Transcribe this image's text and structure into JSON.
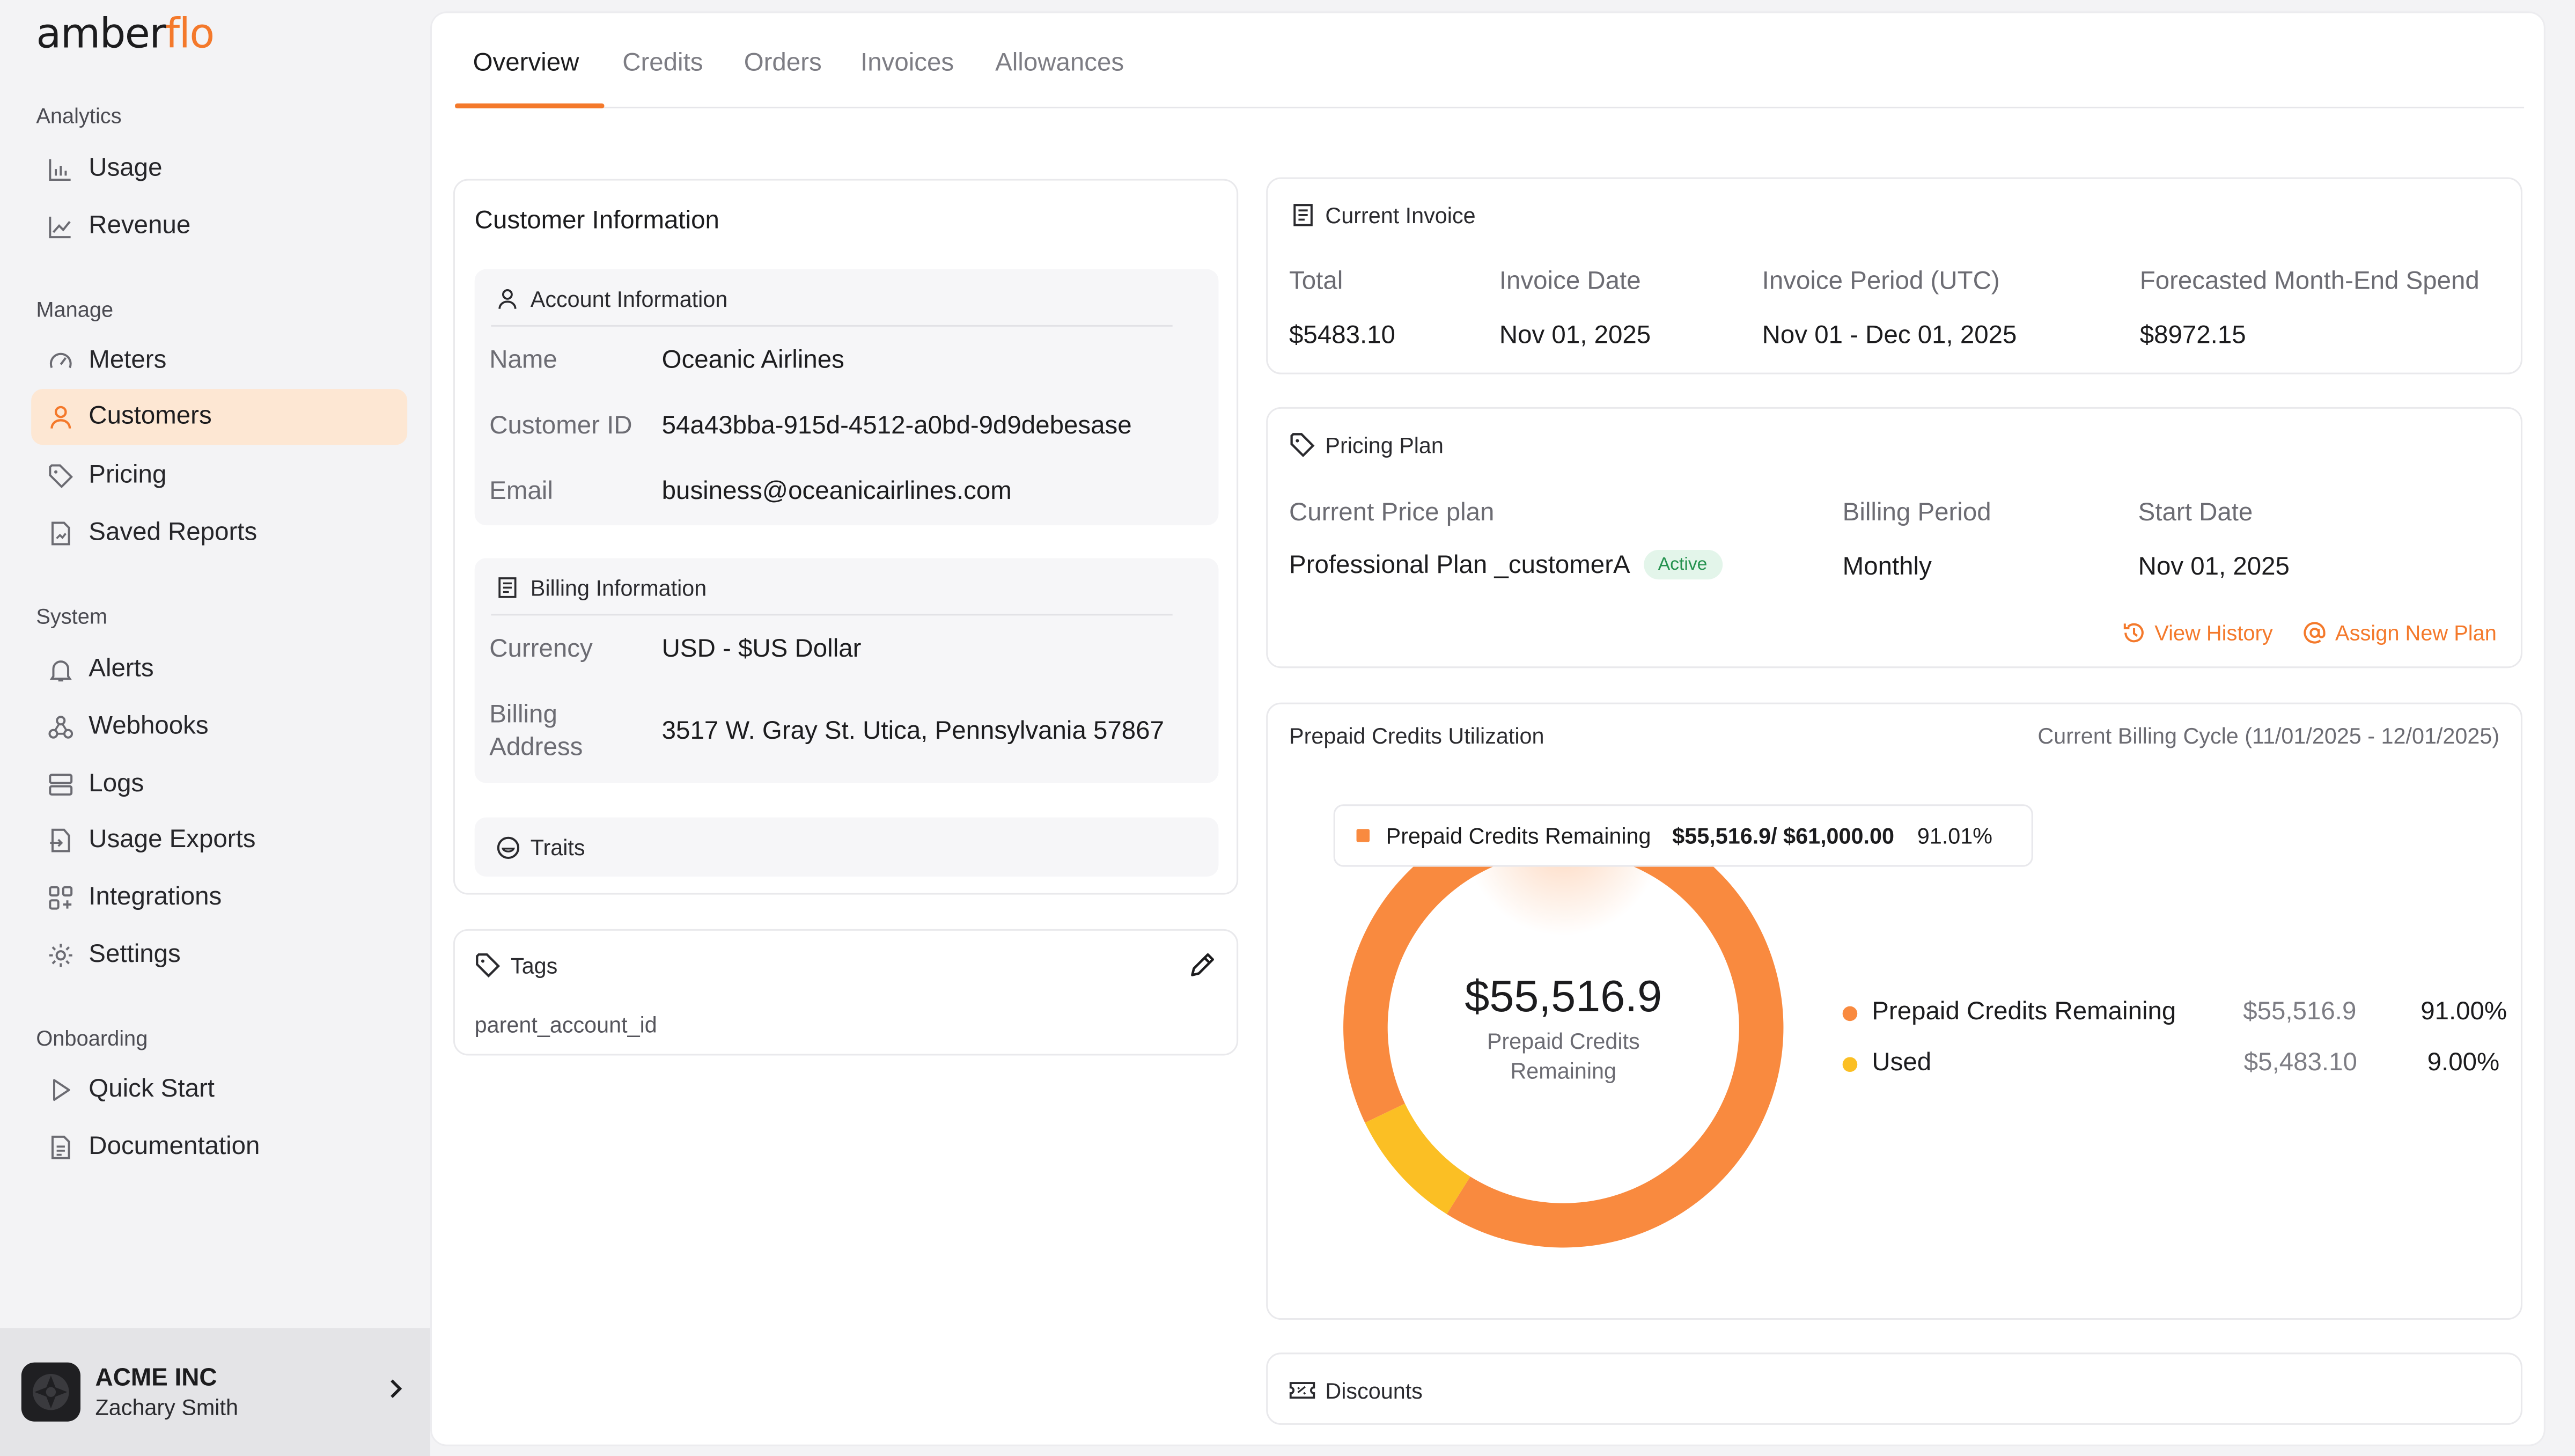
{
  "app": {
    "logo_text_main": "amber",
    "logo_text_accent": "flo"
  },
  "sidebar": {
    "sections": [
      {
        "title": "Analytics",
        "items": [
          {
            "label": "Usage",
            "icon": "bar-chart-icon"
          },
          {
            "label": "Revenue",
            "icon": "line-chart-icon"
          }
        ]
      },
      {
        "title": "Manage",
        "items": [
          {
            "label": "Meters",
            "icon": "gauge-icon"
          },
          {
            "label": "Customers",
            "icon": "user-icon",
            "active": true
          },
          {
            "label": "Pricing",
            "icon": "tag-icon"
          },
          {
            "label": "Saved Reports",
            "icon": "report-icon"
          }
        ]
      },
      {
        "title": "System",
        "items": [
          {
            "label": "Alerts",
            "icon": "bell-icon"
          },
          {
            "label": "Webhooks",
            "icon": "webhook-icon"
          },
          {
            "label": "Logs",
            "icon": "logs-icon"
          },
          {
            "label": "Usage Exports",
            "icon": "export-icon"
          },
          {
            "label": "Integrations",
            "icon": "integrations-icon"
          },
          {
            "label": "Settings",
            "icon": "gear-icon"
          }
        ]
      },
      {
        "title": "Onboarding",
        "items": [
          {
            "label": "Quick Start",
            "icon": "play-icon"
          },
          {
            "label": "Documentation",
            "icon": "document-icon"
          }
        ]
      }
    ],
    "org": {
      "name": "ACME INC",
      "user": "Zachary Smith"
    }
  },
  "tabs": [
    "Overview",
    "Credits",
    "Orders",
    "Invoices",
    "Allowances"
  ],
  "customer_info": {
    "title": "Customer Information",
    "account": {
      "heading": "Account Information",
      "name_label": "Name",
      "name": "Oceanic Airlines",
      "id_label": "Customer ID",
      "id": "54a43bba-915d-4512-a0bd-9d9debesase",
      "email_label": "Email",
      "email": "business@oceanicairlines.com"
    },
    "billing": {
      "heading": "Billing Information",
      "currency_label": "Currency",
      "currency": "USD - $US Dollar",
      "address_label_1": "Billing",
      "address_label_2": "Address",
      "address": "3517 W. Gray St. Utica, Pennsylvania 57867"
    },
    "traits_label": "Traits"
  },
  "tags": {
    "title": "Tags",
    "items": [
      "parent_account_id"
    ]
  },
  "current_invoice": {
    "title": "Current Invoice",
    "total_label": "Total",
    "total": "$5483.10",
    "date_label": "Invoice Date",
    "date": "Nov 01, 2025",
    "period_label": "Invoice Period (UTC)",
    "period": "Nov 01 - Dec 01, 2025",
    "forecast_label": "Forecasted Month-End Spend",
    "forecast": "$8972.15"
  },
  "pricing_plan": {
    "title": "Pricing Plan",
    "plan_label": "Current Price plan",
    "plan": "Professional Plan _customerA",
    "status": "Active",
    "period_label": "Billing Period",
    "period": "Monthly",
    "start_label": "Start Date",
    "start": "Nov 01, 2025",
    "view_history": "View History",
    "assign_new": "Assign New Plan"
  },
  "prepaid": {
    "title": "Prepaid Credits Utilization",
    "cycle": "Current Billing Cycle (11/01/2025 - 12/01/2025)",
    "center_value": "$55,516.9",
    "center_label_1": "Prepaid Credits",
    "center_label_2": "Remaining",
    "tooltip": {
      "label": "Prepaid Credits Remaining",
      "value": "$55,516.9/ $61,000.00",
      "pct": "91.01%"
    },
    "legend": [
      {
        "name": "Prepaid Credits Remaining",
        "amount": "$55,516.9",
        "pct": "91.00%",
        "color": "#f98a3f"
      },
      {
        "name": "Used",
        "amount": "$5,483.10",
        "pct": "9.00%",
        "color": "#fbbf24"
      }
    ]
  },
  "chart_data": {
    "type": "pie",
    "categories": [
      "Prepaid Credits Remaining",
      "Used"
    ],
    "values": [
      55516.9,
      5483.1
    ],
    "colors": [
      "#f98a3f",
      "#fbbf24"
    ]
  },
  "discounts": {
    "title": "Discounts"
  }
}
